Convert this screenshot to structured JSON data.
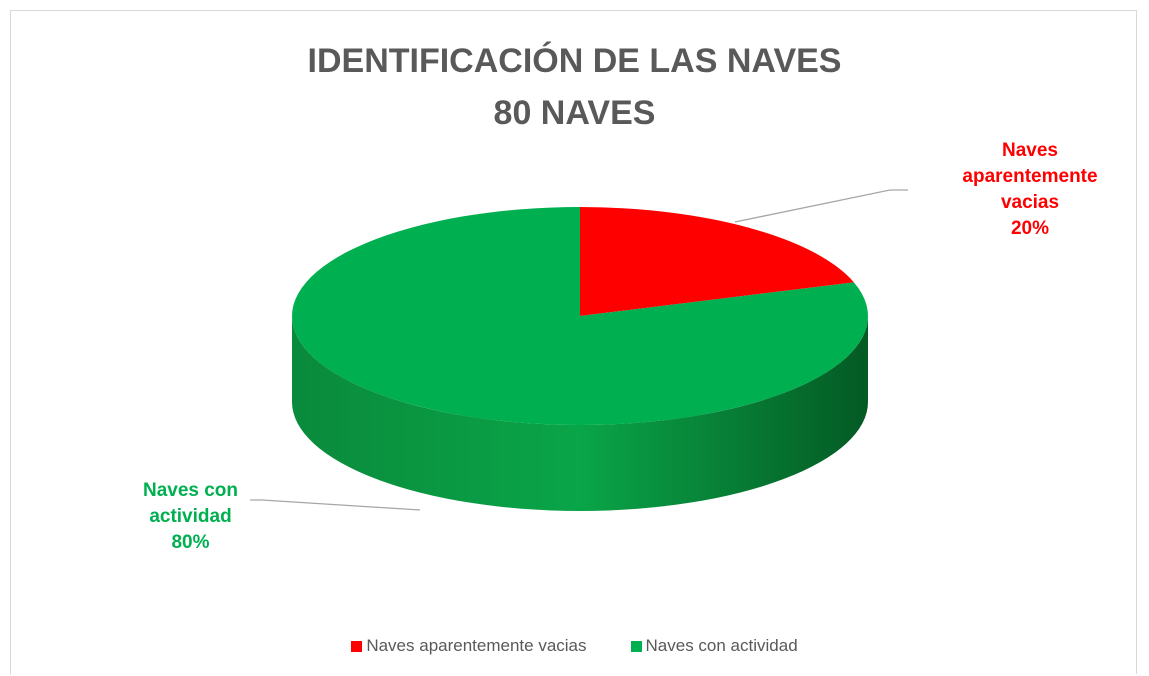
{
  "chart_data": {
    "type": "pie",
    "title": [
      "IDENTIFICACIÓN DE LAS NAVES",
      "80 NAVES"
    ],
    "categories": [
      "Naves aparentemente vacias",
      "Naves con actividad"
    ],
    "values": [
      20,
      80
    ],
    "value_labels": [
      "20%",
      "80%"
    ],
    "colors": [
      "#ff0000",
      "#00b050"
    ],
    "legend": "bottom"
  }
}
